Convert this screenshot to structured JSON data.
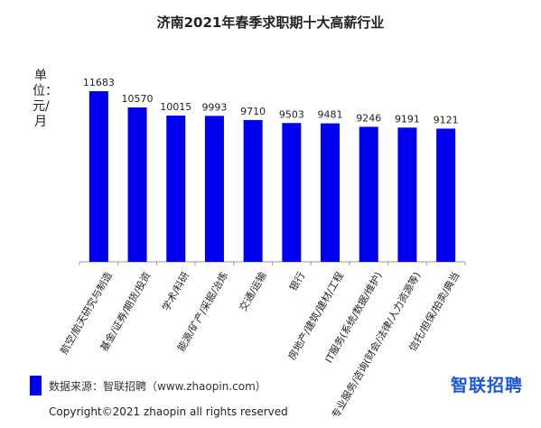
{
  "title": "济南2021年春季求职期十大高薪行业",
  "ylabel": "单位：元/月",
  "chart_data": {
    "type": "bar",
    "title": "济南2021年春季求职期十大高薪行业",
    "ylabel": "单位：元/月",
    "categories": [
      "航空/航天研究与制造",
      "基金/证券/期货/投资",
      "学术/科研",
      "能源/矿产/采掘/冶炼",
      "交通/运输",
      "银行",
      "房地产/建筑/建材/工程",
      "IT服务(系统/数据/维护)",
      "专业服务/咨询(财会/法律/人力资源等)",
      "信托/担保/拍卖/典当"
    ],
    "values": [
      11683,
      10570,
      10015,
      9993,
      9710,
      9503,
      9481,
      9246,
      9191,
      9121
    ],
    "ylim": [
      0,
      11683
    ],
    "color": "#0000ee",
    "legend": "bottom-left",
    "grid": false
  },
  "footer": {
    "source": "数据来源：智联招聘（www.zhaopin.com）",
    "logo": "智联招聘",
    "copyright": "Copyright©2021 zhaopin all rights reserved"
  }
}
